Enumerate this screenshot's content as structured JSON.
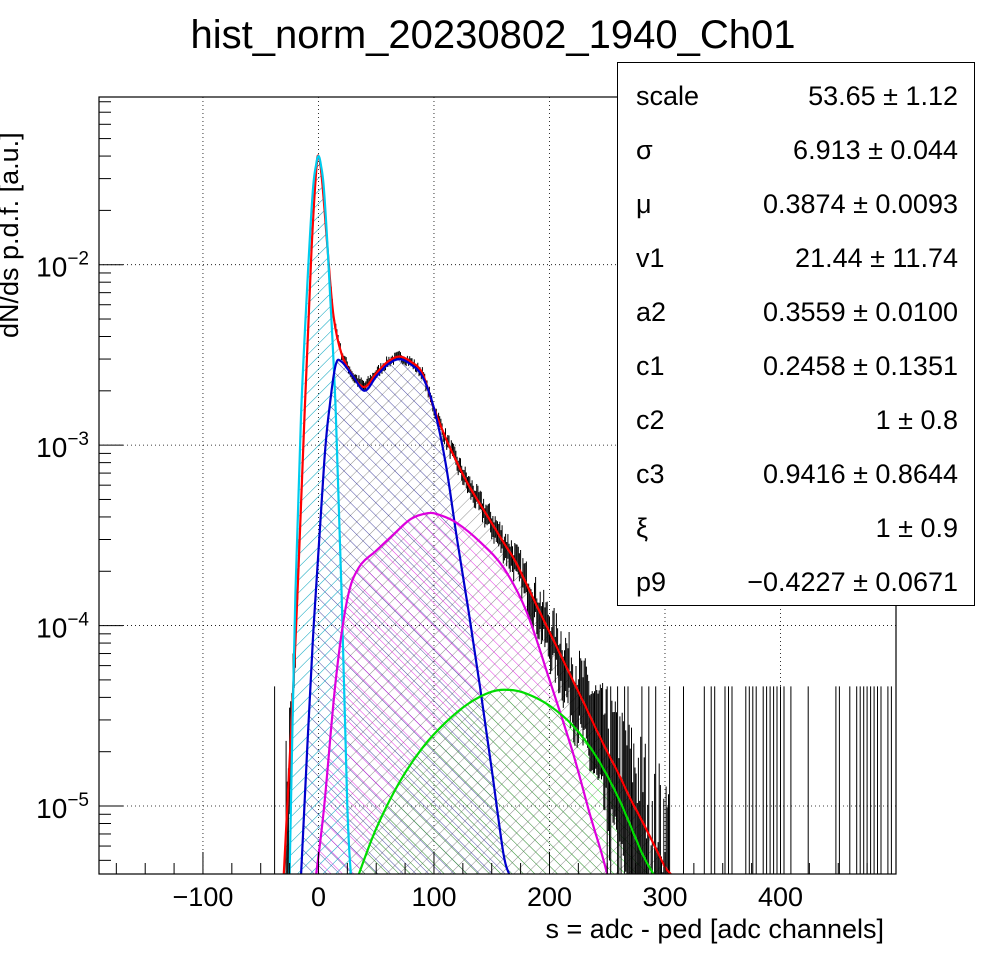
{
  "chart_data": {
    "type": "line",
    "title": "hist_norm_20230802_1940_Ch01",
    "xlabel": "s = adc - ped [adc channels]",
    "ylabel": "dN/ds p.d.f. [a.u.]",
    "xlim": [
      -190,
      500
    ],
    "ylim": [
      4.2e-06,
      0.085
    ],
    "y_scale": "log",
    "grid": true,
    "x_ticks": [
      -100,
      0,
      100,
      200,
      300,
      400
    ],
    "x_tick_labels": [
      "−100",
      "0",
      "100",
      "200",
      "300",
      "400"
    ],
    "y_ticks": [
      1e-05,
      0.0001,
      0.001,
      0.01
    ],
    "y_tick_labels": [
      {
        "base": "10",
        "exp": "−5"
      },
      {
        "base": "10",
        "exp": "−4"
      },
      {
        "base": "10",
        "exp": "−3"
      },
      {
        "base": "10",
        "exp": "−2"
      }
    ],
    "series": [
      {
        "role": "total-fit",
        "color": "#ff0000",
        "x": [
          -30,
          -20,
          -12,
          -6,
          -2,
          0,
          3,
          8,
          13,
          20,
          30,
          40,
          50,
          60,
          70,
          80,
          90,
          100,
          110,
          120,
          130,
          140,
          150,
          160,
          170,
          180,
          190,
          200,
          210,
          220,
          230,
          240,
          250,
          260,
          270,
          280,
          290,
          300,
          305
        ],
        "y": [
          4.2e-06,
          8e-05,
          0.0015,
          0.012,
          0.033,
          0.04,
          0.03,
          0.012,
          0.0052,
          0.0032,
          0.0024,
          0.0021,
          0.0025,
          0.0029,
          0.0031,
          0.0029,
          0.0025,
          0.0016,
          0.0011,
          0.0008,
          0.0006,
          0.00047,
          0.00037,
          0.00029,
          0.00023,
          0.00017,
          0.000125,
          9.2e-05,
          6.8e-05,
          5e-05,
          3.7e-05,
          2.7e-05,
          2e-05,
          1.5e-05,
          1.1e-05,
          8.3e-06,
          6.2e-06,
          4.6e-06,
          4.2e-06
        ]
      },
      {
        "role": "pedestal-component",
        "color": "#00ccee",
        "x": [
          -25,
          -20,
          -15,
          -10,
          -5,
          -2,
          0,
          2,
          5,
          10,
          15,
          20,
          25,
          28
        ],
        "y": [
          4.2e-06,
          0.00015,
          0.0015,
          0.007,
          0.025,
          0.036,
          0.04,
          0.036,
          0.025,
          0.007,
          0.0015,
          0.00015,
          1e-05,
          4.2e-06
        ]
      },
      {
        "role": "component-1",
        "color": "#0000cc",
        "x": [
          -15,
          -5,
          5,
          10,
          15,
          20,
          30,
          40,
          50,
          60,
          70,
          80,
          90,
          100,
          110,
          120,
          130,
          140,
          150,
          160,
          165
        ],
        "y": [
          4.2e-06,
          8e-05,
          0.0008,
          0.0017,
          0.0028,
          0.0029,
          0.0024,
          0.002,
          0.0024,
          0.0028,
          0.003,
          0.0028,
          0.0024,
          0.0016,
          0.0008,
          0.0003,
          0.00012,
          4.5e-05,
          1.6e-05,
          5.5e-06,
          4.2e-06
        ]
      },
      {
        "role": "component-2",
        "color": "#dd00dd",
        "x": [
          -2,
          5,
          15,
          25,
          35,
          50,
          65,
          80,
          95,
          105,
          120,
          140,
          160,
          180,
          200,
          220,
          235,
          245,
          250
        ],
        "y": [
          4.2e-06,
          1e-05,
          5e-05,
          0.00014,
          0.00021,
          0.00026,
          0.00032,
          0.00039,
          0.00042,
          0.00041,
          0.00037,
          0.00029,
          0.00021,
          0.00012,
          5e-05,
          2e-05,
          9e-06,
          5.5e-06,
          4.2e-06
        ]
      },
      {
        "role": "component-3",
        "color": "#00dd00",
        "x": [
          35,
          50,
          70,
          90,
          110,
          130,
          150,
          165,
          180,
          200,
          220,
          240,
          260,
          280,
          290
        ],
        "y": [
          4.2e-06,
          7.5e-06,
          1.35e-05,
          2.1e-05,
          2.9e-05,
          3.7e-05,
          4.3e-05,
          4.4e-05,
          4.2e-05,
          3.6e-05,
          2.8e-05,
          1.9e-05,
          1.1e-05,
          5.5e-06,
          4.2e-06
        ]
      }
    ]
  },
  "stats": [
    {
      "name": "scale",
      "value": "53.65 ± 1.12"
    },
    {
      "name": "σ",
      "value": "6.913 ± 0.044"
    },
    {
      "name": "μ",
      "value": "0.3874 ± 0.0093"
    },
    {
      "name": "v1",
      "value": "21.44 ± 11.74"
    },
    {
      "name": "a2",
      "value": "0.3559 ± 0.0100"
    },
    {
      "name": "c1",
      "value": "0.2458 ± 0.1351"
    },
    {
      "name": "c2",
      "value": "1 ± 0.8"
    },
    {
      "name": "c3",
      "value": "0.9416 ± 0.8644"
    },
    {
      "name": "ξ",
      "value": "1 ± 0.9"
    },
    {
      "name": "p9",
      "value": "−0.4227 ± 0.0671"
    }
  ]
}
